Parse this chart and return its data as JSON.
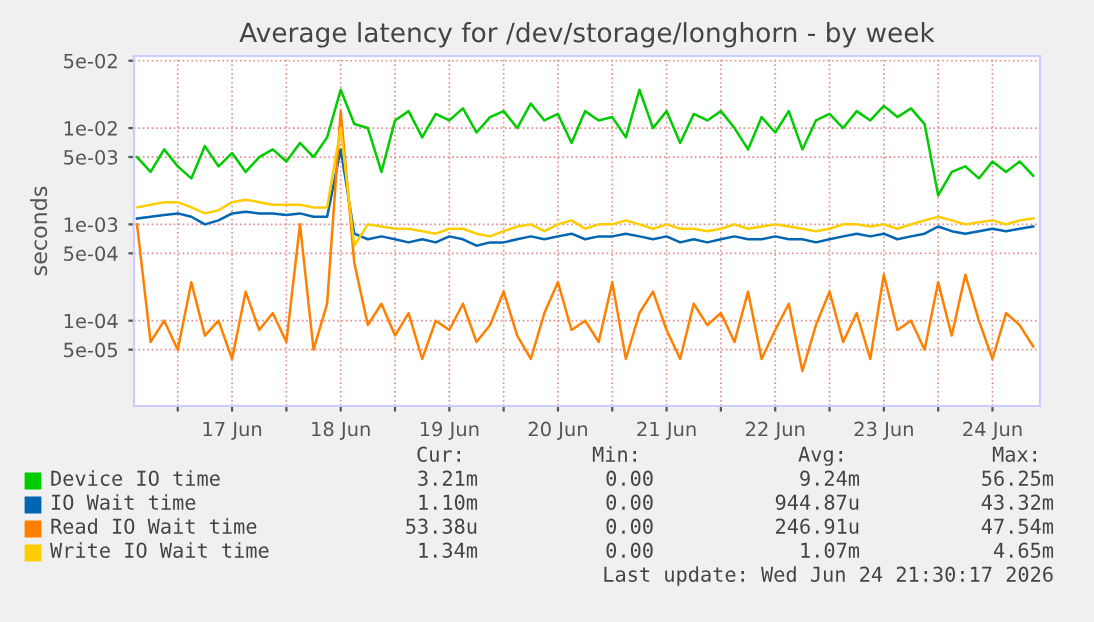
{
  "chart_data": {
    "type": "line",
    "title": "Average latency for /dev/storage/longhorn - by week",
    "ylabel": "seconds",
    "log": "y",
    "ylim": [
      1.3e-05,
      0.056
    ],
    "yticks": [
      {
        "value": 5e-05,
        "label": "5e-05"
      },
      {
        "value": 0.0001,
        "label": "1e-04"
      },
      {
        "value": 0.0005,
        "label": "5e-04"
      },
      {
        "value": 0.001,
        "label": "1e-03"
      },
      {
        "value": 0.005,
        "label": "5e-03"
      },
      {
        "value": 0.01,
        "label": "1e-02"
      },
      {
        "value": 0.05,
        "label": "5e-02"
      }
    ],
    "xlim": [
      "2026-06-16T14:20",
      "2026-06-24T22:30"
    ],
    "xticks": [
      {
        "value": "2026-06-17T00:00",
        "label": null
      },
      {
        "value": "2026-06-17T12:00",
        "label": "17 Jun"
      },
      {
        "value": "2026-06-18T00:00",
        "label": null
      },
      {
        "value": "2026-06-18T12:00",
        "label": "18 Jun"
      },
      {
        "value": "2026-06-19T00:00",
        "label": null
      },
      {
        "value": "2026-06-19T12:00",
        "label": "19 Jun"
      },
      {
        "value": "2026-06-20T00:00",
        "label": null
      },
      {
        "value": "2026-06-20T12:00",
        "label": "20 Jun"
      },
      {
        "value": "2026-06-21T00:00",
        "label": null
      },
      {
        "value": "2026-06-21T12:00",
        "label": "21 Jun"
      },
      {
        "value": "2026-06-22T00:00",
        "label": null
      },
      {
        "value": "2026-06-22T12:00",
        "label": "22 Jun"
      },
      {
        "value": "2026-06-23T00:00",
        "label": null
      },
      {
        "value": "2026-06-23T12:00",
        "label": "23 Jun"
      },
      {
        "value": "2026-06-24T00:00",
        "label": null
      },
      {
        "value": "2026-06-24T12:00",
        "label": "24 Jun"
      }
    ],
    "grid": true,
    "legend": "bottom",
    "line_style": "solid",
    "x": [
      "2026-06-16T15:00",
      "2026-06-16T18:00",
      "2026-06-16T21:00",
      "2026-06-17T00:00",
      "2026-06-17T03:00",
      "2026-06-17T06:00",
      "2026-06-17T09:00",
      "2026-06-17T12:00",
      "2026-06-17T15:00",
      "2026-06-17T18:00",
      "2026-06-17T21:00",
      "2026-06-18T00:00",
      "2026-06-18T03:00",
      "2026-06-18T06:00",
      "2026-06-18T09:00",
      "2026-06-18T12:00",
      "2026-06-18T15:00",
      "2026-06-18T18:00",
      "2026-06-18T21:00",
      "2026-06-19T00:00",
      "2026-06-19T03:00",
      "2026-06-19T06:00",
      "2026-06-19T09:00",
      "2026-06-19T12:00",
      "2026-06-19T15:00",
      "2026-06-19T18:00",
      "2026-06-19T21:00",
      "2026-06-20T00:00",
      "2026-06-20T03:00",
      "2026-06-20T06:00",
      "2026-06-20T09:00",
      "2026-06-20T12:00",
      "2026-06-20T15:00",
      "2026-06-20T18:00",
      "2026-06-20T21:00",
      "2026-06-21T00:00",
      "2026-06-21T03:00",
      "2026-06-21T06:00",
      "2026-06-21T09:00",
      "2026-06-21T12:00",
      "2026-06-21T15:00",
      "2026-06-21T18:00",
      "2026-06-21T21:00",
      "2026-06-22T00:00",
      "2026-06-22T03:00",
      "2026-06-22T06:00",
      "2026-06-22T09:00",
      "2026-06-22T12:00",
      "2026-06-22T15:00",
      "2026-06-22T18:00",
      "2026-06-22T21:00",
      "2026-06-23T00:00",
      "2026-06-23T03:00",
      "2026-06-23T06:00",
      "2026-06-23T09:00",
      "2026-06-23T12:00",
      "2026-06-23T15:00",
      "2026-06-23T18:00",
      "2026-06-23T21:00",
      "2026-06-24T00:00",
      "2026-06-24T03:00",
      "2026-06-24T06:00",
      "2026-06-24T09:00",
      "2026-06-24T12:00",
      "2026-06-24T15:00",
      "2026-06-24T18:00",
      "2026-06-24T21:00"
    ],
    "series": [
      {
        "name": "Device IO time",
        "color": "#00cc00",
        "values": [
          0.005,
          0.0035,
          0.006,
          0.004,
          0.003,
          0.0065,
          0.004,
          0.0055,
          0.0035,
          0.005,
          0.006,
          0.0045,
          0.007,
          0.005,
          0.008,
          0.025,
          0.011,
          0.01,
          0.0035,
          0.012,
          0.015,
          0.008,
          0.014,
          0.012,
          0.016,
          0.009,
          0.013,
          0.015,
          0.01,
          0.018,
          0.012,
          0.014,
          0.007,
          0.015,
          0.012,
          0.013,
          0.008,
          0.025,
          0.01,
          0.015,
          0.007,
          0.014,
          0.012,
          0.015,
          0.01,
          0.006,
          0.013,
          0.009,
          0.015,
          0.006,
          0.012,
          0.014,
          0.01,
          0.015,
          0.012,
          0.017,
          0.013,
          0.016,
          0.011,
          0.002,
          0.0035,
          0.004,
          0.003,
          0.0045,
          0.0035,
          0.0045,
          0.0032
        ]
      },
      {
        "name": "IO Wait time",
        "color": "#0066b3",
        "values": [
          0.00115,
          0.0012,
          0.00125,
          0.0013,
          0.0012,
          0.001,
          0.0011,
          0.0013,
          0.00135,
          0.0013,
          0.0013,
          0.00125,
          0.0013,
          0.0012,
          0.0012,
          0.006,
          0.0008,
          0.0007,
          0.00075,
          0.0007,
          0.00065,
          0.0007,
          0.00065,
          0.00075,
          0.0007,
          0.0006,
          0.00065,
          0.00065,
          0.0007,
          0.00075,
          0.0007,
          0.00075,
          0.0008,
          0.0007,
          0.00075,
          0.00075,
          0.0008,
          0.00075,
          0.0007,
          0.00075,
          0.00065,
          0.0007,
          0.00065,
          0.0007,
          0.00075,
          0.0007,
          0.0007,
          0.00075,
          0.0007,
          0.0007,
          0.00065,
          0.0007,
          0.00075,
          0.0008,
          0.00075,
          0.0008,
          0.0007,
          0.00075,
          0.0008,
          0.00095,
          0.00085,
          0.0008,
          0.00085,
          0.0009,
          0.00085,
          0.0009,
          0.00095
        ]
      },
      {
        "name": "Read IO Wait time",
        "color": "#ff8000",
        "values": [
          0.001,
          6e-05,
          0.0001,
          5e-05,
          0.00025,
          7e-05,
          0.0001,
          4e-05,
          0.0002,
          8e-05,
          0.00012,
          6e-05,
          0.001,
          5e-05,
          0.00015,
          0.015,
          0.0004,
          9e-05,
          0.00015,
          7e-05,
          0.00012,
          4e-05,
          0.0001,
          8e-05,
          0.00015,
          6e-05,
          9e-05,
          0.0002,
          7e-05,
          4e-05,
          0.00012,
          0.00025,
          8e-05,
          0.0001,
          6e-05,
          0.00025,
          4e-05,
          0.00012,
          0.0002,
          8e-05,
          4e-05,
          0.00015,
          9e-05,
          0.00012,
          6e-05,
          0.0002,
          4e-05,
          8e-05,
          0.00015,
          3e-05,
          9e-05,
          0.0002,
          6e-05,
          0.00012,
          4e-05,
          0.0003,
          8e-05,
          0.0001,
          5e-05,
          0.00025,
          7e-05,
          0.0003,
          0.0001,
          4e-05,
          0.00012,
          9e-05,
          5.4e-05
        ]
      },
      {
        "name": "Write IO Wait time",
        "color": "#ffcc00",
        "values": [
          0.0015,
          0.0016,
          0.0017,
          0.0017,
          0.0015,
          0.0013,
          0.0014,
          0.0017,
          0.0018,
          0.0017,
          0.0016,
          0.0016,
          0.0016,
          0.0015,
          0.0015,
          0.01,
          0.0006,
          0.001,
          0.00095,
          0.0009,
          0.0009,
          0.00085,
          0.0008,
          0.0009,
          0.0009,
          0.0008,
          0.00075,
          0.00085,
          0.00095,
          0.001,
          0.00085,
          0.001,
          0.0011,
          0.0009,
          0.001,
          0.001,
          0.0011,
          0.001,
          0.0009,
          0.001,
          0.0009,
          0.0009,
          0.00085,
          0.0009,
          0.001,
          0.0009,
          0.00095,
          0.001,
          0.00095,
          0.0009,
          0.00085,
          0.0009,
          0.001,
          0.001,
          0.00095,
          0.001,
          0.0009,
          0.001,
          0.0011,
          0.0012,
          0.0011,
          0.001,
          0.00105,
          0.0011,
          0.001,
          0.0011,
          0.00115
        ]
      }
    ],
    "annotations": [
      "Cur:",
      "Min:",
      "Avg:",
      "Max:",
      "3.21m",
      "0.00",
      "9.24m",
      "56.25m",
      "1.10m",
      "0.00",
      "944.87u",
      "43.32m",
      "53.38u",
      "0.00",
      "246.91u",
      "47.54m",
      "1.34m",
      "0.00",
      "1.07m",
      "4.65m",
      "Last update: Wed Jun 24 21:30:17 2026"
    ]
  }
}
